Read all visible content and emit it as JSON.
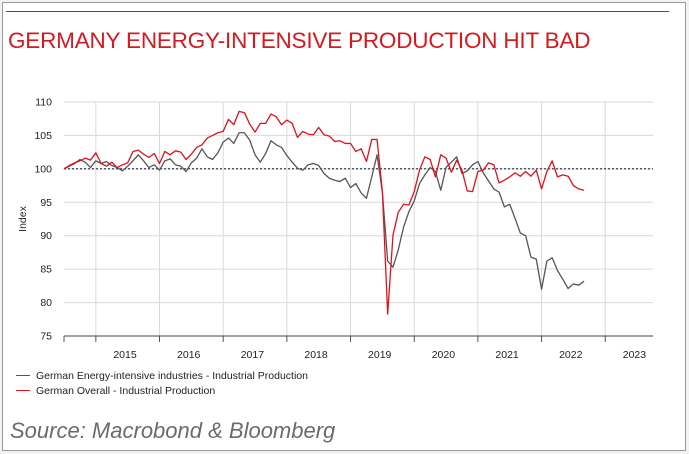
{
  "title": "GERMANY ENERGY-INTENSIVE PRODUCTION HIT BAD",
  "source": "Source: Macrobond & Bloomberg",
  "colors": {
    "accent": "#d7191f",
    "energy_series": "#555555",
    "overall_series": "#e3111b",
    "source_text": "#6b6b6b"
  },
  "chart_data": {
    "type": "line",
    "title": "",
    "xlabel": "",
    "ylabel": "Index",
    "ylim": [
      75,
      110
    ],
    "yticks": [
      75,
      80,
      85,
      90,
      95,
      100,
      105,
      110
    ],
    "xlim": [
      "2014-07",
      "2023-10"
    ],
    "year_labels": [
      "2015",
      "2016",
      "2017",
      "2018",
      "2019",
      "2020",
      "2021",
      "2022",
      "2023"
    ],
    "reference_line": 100,
    "grid": true,
    "legend_position": "bottom-left",
    "x_start": "2014-07",
    "x_interval": "monthly",
    "series": [
      {
        "name": "German Energy-intensive industries - Industrial Production",
        "color": "#555555",
        "values": [
          100.0,
          100.4,
          100.8,
          101.4,
          101.0,
          100.2,
          101.2,
          100.8,
          101.1,
          100.5,
          100.2,
          99.7,
          100.4,
          101.2,
          102.1,
          101.2,
          100.2,
          100.6,
          99.8,
          101.2,
          101.5,
          100.6,
          100.4,
          99.6,
          100.9,
          101.6,
          103.0,
          101.8,
          101.4,
          102.4,
          104.0,
          104.6,
          103.8,
          105.4,
          105.4,
          104.3,
          102.1,
          101.0,
          102.3,
          104.2,
          103.6,
          103.2,
          102.0,
          101.0,
          100.1,
          99.8,
          100.6,
          100.8,
          100.5,
          99.3,
          98.6,
          98.3,
          98.1,
          98.6,
          97.2,
          97.8,
          96.4,
          95.6,
          98.8,
          102.1,
          96.5,
          86.2,
          85.3,
          87.9,
          91.3,
          93.6,
          95.2,
          97.8,
          99.1,
          100.2,
          99.6,
          96.8,
          100.2,
          101.0,
          101.8,
          99.3,
          99.7,
          100.6,
          101.1,
          99.4,
          98.2,
          97.0,
          96.5,
          94.3,
          94.7,
          92.6,
          90.4,
          90.0,
          86.8,
          86.5,
          82.0,
          86.2,
          86.7,
          84.8,
          83.5,
          82.1,
          82.8,
          82.6,
          83.2
        ]
      },
      {
        "name": "German Overall - Industrial Production",
        "color": "#e3111b",
        "values": [
          100.0,
          100.5,
          100.9,
          101.2,
          101.6,
          101.3,
          102.4,
          100.8,
          100.4,
          101.0,
          100.2,
          100.6,
          100.9,
          102.6,
          102.8,
          102.2,
          101.7,
          102.3,
          100.8,
          102.6,
          102.1,
          102.7,
          102.5,
          101.4,
          102.2,
          103.2,
          103.6,
          104.6,
          105.0,
          105.4,
          105.6,
          107.4,
          106.6,
          108.6,
          108.4,
          106.7,
          105.5,
          106.8,
          106.8,
          108.2,
          107.8,
          106.6,
          107.3,
          106.8,
          104.7,
          105.6,
          105.2,
          105.1,
          106.2,
          105.1,
          104.9,
          104.1,
          104.2,
          103.8,
          103.8,
          102.6,
          103.0,
          101.1,
          104.4,
          104.4,
          96.6,
          78.3,
          90.1,
          93.5,
          94.7,
          94.6,
          96.6,
          99.8,
          101.8,
          101.4,
          98.8,
          102.1,
          101.6,
          99.5,
          101.3,
          99.8,
          96.7,
          96.6,
          99.6,
          99.8,
          100.9,
          100.6,
          97.9,
          98.3,
          98.8,
          99.4,
          98.9,
          99.6,
          98.9,
          99.8,
          97.0,
          99.6,
          101.2,
          98.8,
          99.1,
          98.9,
          97.5,
          97.0,
          96.8
        ]
      }
    ]
  }
}
